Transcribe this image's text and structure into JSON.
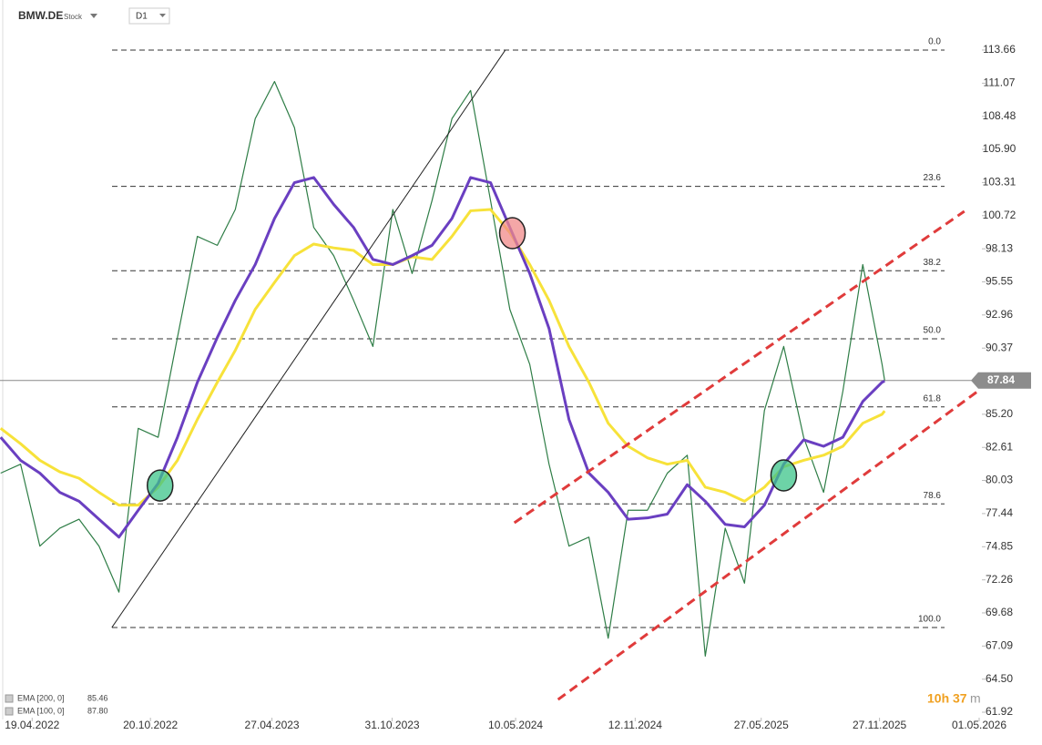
{
  "chart_data": {
    "type": "line",
    "title": "BMW.DE",
    "subtitle": "Stock",
    "timeframe": "D1",
    "x": [
      "2022-03-01",
      "2022-04-01",
      "2022-05-01",
      "2022-06-01",
      "2022-07-01",
      "2022-08-01",
      "2022-09-01",
      "2022-10-01",
      "2022-11-01",
      "2022-12-01",
      "2023-01-01",
      "2023-02-01",
      "2023-03-01",
      "2023-04-01",
      "2023-05-01",
      "2023-06-01",
      "2023-07-01",
      "2023-08-01",
      "2023-09-01",
      "2023-10-01",
      "2023-11-01",
      "2023-12-01",
      "2024-01-01",
      "2024-02-01",
      "2024-03-01",
      "2024-04-01",
      "2024-05-01",
      "2024-06-01",
      "2024-07-01",
      "2024-08-01",
      "2024-09-01",
      "2024-10-01",
      "2024-11-01",
      "2024-12-01",
      "2025-01-01",
      "2025-02-01",
      "2025-03-01",
      "2025-04-01",
      "2025-05-01",
      "2025-06-01",
      "2025-07-01",
      "2025-08-01",
      "2025-09-01",
      "2025-10-01",
      "2025-11-01",
      "2025-12-01",
      "2025-12-05"
    ],
    "price": {
      "color": "#2e7d46",
      "values": [
        80.6,
        81.3,
        74.9,
        76.3,
        77.0,
        74.9,
        71.3,
        84.1,
        83.4,
        91.2,
        99.1,
        98.4,
        101.2,
        108.3,
        111.2,
        107.6,
        99.8,
        97.6,
        94.1,
        90.5,
        101.2,
        96.2,
        101.9,
        108.3,
        110.5,
        101.9,
        93.4,
        89.1,
        81.3,
        74.9,
        75.6,
        67.7,
        77.7,
        77.7,
        80.6,
        82.0,
        66.3,
        76.3,
        72.0,
        85.5,
        90.5,
        83.4,
        79.1,
        87.0,
        96.9,
        89.1,
        87.84
      ]
    },
    "series": [
      {
        "name": "EMA [200, 0]",
        "color": "#f7e23a",
        "legend_value": 85.46,
        "values": [
          84.1,
          82.9,
          81.6,
          80.7,
          80.2,
          79.1,
          78.1,
          78.1,
          79.5,
          81.6,
          84.8,
          87.7,
          90.2,
          93.4,
          95.5,
          97.6,
          98.5,
          98.2,
          98.0,
          96.9,
          96.9,
          97.5,
          97.3,
          99.1,
          101.1,
          101.2,
          99.4,
          96.9,
          94.1,
          90.5,
          87.7,
          84.5,
          82.7,
          81.8,
          81.3,
          81.6,
          79.5,
          79.1,
          78.4,
          79.5,
          81.1,
          81.6,
          82.0,
          82.7,
          84.5,
          85.2,
          85.46
        ]
      },
      {
        "name": "EMA [100, 0]",
        "color": "#6a3fc1",
        "legend_value": {
          "value": 87.8,
          "label": "87.80"
        },
        "values": [
          83.4,
          81.6,
          80.6,
          79.1,
          78.4,
          77.0,
          75.6,
          77.7,
          79.8,
          83.4,
          87.7,
          91.2,
          94.1,
          96.9,
          100.5,
          103.3,
          103.7,
          101.6,
          99.8,
          97.3,
          96.9,
          97.6,
          98.4,
          100.5,
          103.7,
          103.3,
          99.8,
          96.2,
          91.9,
          84.8,
          80.6,
          79.1,
          77.0,
          77.1,
          77.4,
          79.7,
          78.4,
          76.6,
          76.4,
          78.1,
          81.3,
          83.2,
          82.7,
          83.4,
          86.2,
          87.7,
          87.8
        ]
      }
    ],
    "last_price": 87.84,
    "xlim": [
      "2022-02-28",
      "2026-05-01"
    ],
    "xticks": [
      {
        "value": "2022-04-19",
        "label": "19.04.2022"
      },
      {
        "value": "2022-10-20",
        "label": "20.10.2022"
      },
      {
        "value": "2023-04-27",
        "label": "27.04.2023"
      },
      {
        "value": "2023-10-31",
        "label": "31.10.2023"
      },
      {
        "value": "2024-05-10",
        "label": "10.05.2024"
      },
      {
        "value": "2024-11-12",
        "label": "12.11.2024"
      },
      {
        "value": "2025-05-27",
        "label": "27.05.2025"
      },
      {
        "value": "2025-11-27",
        "label": "27.11.2025"
      },
      {
        "value": "2026-05-01",
        "label": "01.05.2026"
      }
    ],
    "ylim": [
      61.35,
      117.57
    ],
    "yticks": [
      113.66,
      111.07,
      108.48,
      {
        "value": 105.9,
        "label": "105.90"
      },
      103.31,
      100.72,
      98.13,
      95.55,
      92.96,
      90.37,
      {
        "value": 85.2,
        "label": "85.20"
      },
      82.61,
      80.03,
      77.44,
      74.85,
      72.26,
      69.68,
      67.09,
      {
        "value": 64.5,
        "label": "64.50"
      },
      61.92
    ],
    "fib_levels": [
      {
        "label": "0.0",
        "price": 113.66
      },
      {
        "label": "23.6",
        "price": 103.01
      },
      {
        "label": "38.2",
        "price": 96.42
      },
      {
        "label": "50.0",
        "price": 91.1
      },
      {
        "label": "61.8",
        "price": 85.78
      },
      {
        "label": "78.6",
        "price": 78.2
      },
      {
        "label": "100.0",
        "price": 68.54
      }
    ],
    "trend_lines": [
      {
        "color": "#222222",
        "dashed": false,
        "points": [
          [
            "2022-08-21",
            68.54
          ],
          [
            "2024-04-24",
            113.66
          ]
        ]
      },
      {
        "color": "#e03b3b",
        "dashed": true,
        "points": [
          [
            "2024-05-08",
            76.72
          ],
          [
            "2026-04-08",
            101.06
          ]
        ]
      },
      {
        "color": "#e03b3b",
        "dashed": true,
        "points": [
          [
            "2024-07-15",
            62.91
          ],
          [
            "2026-04-30",
            87.04
          ]
        ]
      }
    ],
    "markers": [
      {
        "color": "#3cc48a",
        "x": "2022-11-04",
        "y": 79.63
      },
      {
        "color": "#f08a8a",
        "x": "2024-05-05",
        "y": 99.35
      },
      {
        "color": "#3cc48a",
        "x": "2025-07-01",
        "y": 80.42
      }
    ],
    "countdown": "10h 37",
    "countdown_unit": "m"
  }
}
